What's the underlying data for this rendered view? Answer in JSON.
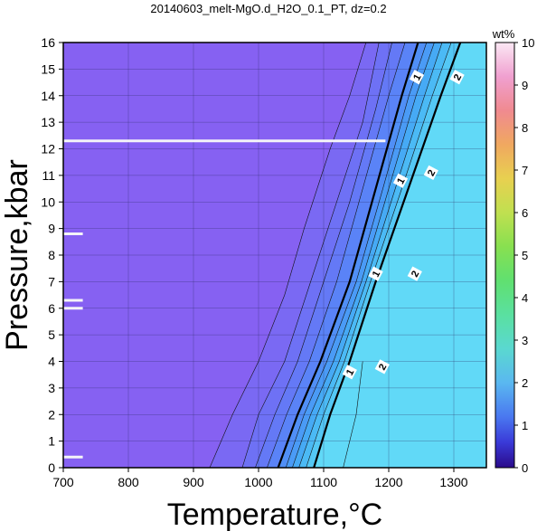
{
  "chart_data": {
    "type": "heatmap",
    "title": "20140603_melt-MgO.d_H2O_0.1_PT, dz=0.2",
    "xlabel": "Temperature,°C",
    "ylabel": "Pressure,kbar",
    "xlim": [
      700,
      1350
    ],
    "ylim": [
      0,
      16
    ],
    "x_ticks": [
      700,
      800,
      900,
      1000,
      1100,
      1200,
      1300
    ],
    "y_ticks": [
      0,
      1,
      2,
      3,
      4,
      5,
      6,
      7,
      8,
      9,
      10,
      11,
      12,
      13,
      14,
      15,
      16
    ],
    "grid": true,
    "colorbar": {
      "label": "wt%",
      "range": [
        0,
        10
      ],
      "ticks": [
        0,
        1,
        2,
        3,
        4,
        5,
        6,
        7,
        8,
        9,
        10
      ],
      "placement": "right"
    },
    "contour_interval": 0.2,
    "major_contours": [
      {
        "level": 1,
        "label": "1",
        "points": [
          [
            1030,
            0
          ],
          [
            1060,
            2
          ],
          [
            1095,
            4
          ],
          [
            1140,
            7
          ],
          [
            1180,
            10.5
          ],
          [
            1220,
            14
          ],
          [
            1245,
            16
          ]
        ],
        "label_positions": [
          [
            1140,
            3.6
          ],
          [
            1180,
            7.3
          ],
          [
            1218,
            10.8
          ],
          [
            1243,
            14.7
          ]
        ]
      },
      {
        "level": 2,
        "label": "2",
        "points": [
          [
            1085,
            0
          ],
          [
            1110,
            2
          ],
          [
            1140,
            4
          ],
          [
            1180,
            7
          ],
          [
            1230,
            10.5
          ],
          [
            1280,
            14
          ],
          [
            1310,
            16
          ]
        ],
        "label_positions": [
          [
            1190,
            3.8
          ],
          [
            1240,
            7.3
          ],
          [
            1265,
            11.1
          ],
          [
            1305,
            14.7
          ]
        ]
      }
    ],
    "minor_contours": [
      {
        "level": 0.2,
        "points": [
          [
            925,
            0
          ],
          [
            960,
            2
          ],
          [
            1000,
            4
          ],
          [
            1040,
            6.5
          ],
          [
            1070,
            9
          ],
          [
            1110,
            12
          ],
          [
            1140,
            14
          ],
          [
            1165,
            16
          ]
        ]
      },
      {
        "level": 0.4,
        "points": [
          [
            975,
            0
          ],
          [
            1000,
            2
          ],
          [
            1040,
            4
          ],
          [
            1080,
            7
          ],
          [
            1120,
            10
          ],
          [
            1160,
            13
          ],
          [
            1185,
            16
          ]
        ]
      },
      {
        "level": 0.6,
        "points": [
          [
            995,
            0
          ],
          [
            1025,
            2
          ],
          [
            1060,
            4
          ],
          [
            1100,
            7
          ],
          [
            1140,
            10
          ],
          [
            1180,
            13.5
          ],
          [
            1205,
            16
          ]
        ]
      },
      {
        "level": 0.8,
        "points": [
          [
            1013,
            0
          ],
          [
            1043,
            2
          ],
          [
            1078,
            4
          ],
          [
            1120,
            7
          ],
          [
            1160,
            10.5
          ],
          [
            1200,
            14
          ],
          [
            1225,
            16
          ]
        ]
      },
      {
        "level": 1.2,
        "points": [
          [
            1042,
            0
          ],
          [
            1070,
            2
          ],
          [
            1105,
            4
          ],
          [
            1150,
            7
          ],
          [
            1191,
            10.5
          ],
          [
            1231,
            14
          ],
          [
            1258,
            16
          ]
        ]
      },
      {
        "level": 1.4,
        "points": [
          [
            1052,
            0
          ],
          [
            1080,
            2
          ],
          [
            1115,
            4
          ],
          [
            1158,
            7
          ],
          [
            1200,
            10.5
          ],
          [
            1242,
            14
          ],
          [
            1270,
            16
          ]
        ]
      },
      {
        "level": 1.6,
        "points": [
          [
            1062,
            0
          ],
          [
            1090,
            2
          ],
          [
            1124,
            4
          ],
          [
            1165,
            7
          ],
          [
            1210,
            10.5
          ],
          [
            1255,
            14
          ],
          [
            1282,
            16
          ]
        ]
      },
      {
        "level": 1.8,
        "points": [
          [
            1073,
            0
          ],
          [
            1100,
            2
          ],
          [
            1132,
            4
          ],
          [
            1172,
            7
          ],
          [
            1220,
            10.5
          ],
          [
            1267,
            14
          ],
          [
            1296,
            16
          ]
        ]
      },
      {
        "level": 2.2,
        "points": [
          [
            1130,
            0
          ],
          [
            1150,
            2
          ],
          [
            1160,
            4
          ]
        ]
      }
    ],
    "fill_regions": [
      {
        "range": [
          0,
          0.2
        ],
        "color": "#8661f2"
      },
      {
        "range": [
          0.2,
          0.4
        ],
        "color": "#7a69f3"
      },
      {
        "range": [
          0.4,
          0.6
        ],
        "color": "#6e71f5"
      },
      {
        "range": [
          0.6,
          0.8
        ],
        "color": "#6479f6"
      },
      {
        "range": [
          0.8,
          1.0
        ],
        "color": "#5a83f7"
      },
      {
        "range": [
          1.0,
          1.2
        ],
        "color": "#508ff6"
      },
      {
        "range": [
          1.2,
          1.4
        ],
        "color": "#4a9bf6"
      },
      {
        "range": [
          1.4,
          1.6
        ],
        "color": "#46aaf5"
      },
      {
        "range": [
          1.6,
          1.8
        ],
        "color": "#4bbaf5"
      },
      {
        "range": [
          1.8,
          2.0
        ],
        "color": "#54c8f5"
      },
      {
        "range": [
          2.0,
          2.4
        ],
        "color": "#61d9f7"
      }
    ],
    "gap_lines": [
      {
        "y": 12.3,
        "x": [
          700,
          1195
        ]
      },
      {
        "y": 8.8,
        "x": [
          700,
          730
        ]
      },
      {
        "y": 6.3,
        "x": [
          700,
          730
        ]
      },
      {
        "y": 6.0,
        "x": [
          700,
          730
        ]
      },
      {
        "y": 0.4,
        "x": [
          700,
          730
        ]
      }
    ]
  }
}
